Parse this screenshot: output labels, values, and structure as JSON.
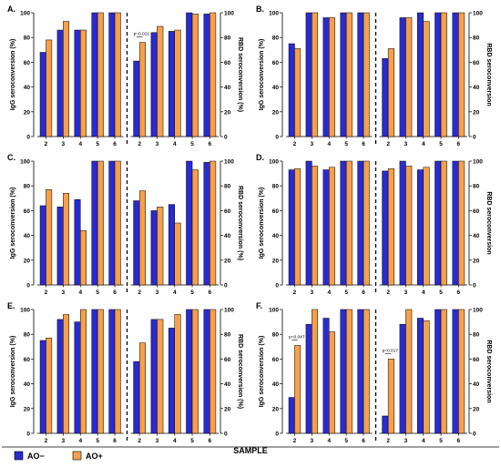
{
  "figure": {
    "x_axis_label": "SAMPLE",
    "legend": [
      {
        "label": "AO−",
        "color": "#2a2ad1"
      },
      {
        "label": "AO+",
        "color": "#f5a04a"
      }
    ],
    "colors": {
      "ao_minus": "#2a2ad1",
      "ao_plus": "#f5a04a",
      "axis": "#000000"
    }
  },
  "chart_data": [
    {
      "type": "bar",
      "panel_label": "A.",
      "ylabel_left": "IgG seroconversion (%)",
      "ylabel_right": "RBD seroconversion (%)",
      "ylim": [
        0,
        100
      ],
      "yticks": [
        0,
        20,
        40,
        60,
        80,
        100
      ],
      "groups": [
        {
          "categories": [
            "2",
            "3",
            "4",
            "5",
            "6"
          ],
          "series": [
            {
              "name": "AO−",
              "values": [
                68,
                86,
                86,
                100,
                100
              ]
            },
            {
              "name": "AO+",
              "values": [
                78,
                93,
                86,
                100,
                100
              ]
            }
          ]
        },
        {
          "categories": [
            "2",
            "3",
            "4",
            "5",
            "6"
          ],
          "series": [
            {
              "name": "AO−",
              "values": [
                61,
                84,
                85,
                100,
                99
              ]
            },
            {
              "name": "AO+",
              "values": [
                76,
                89,
                86,
                99,
                100
              ]
            }
          ]
        }
      ],
      "annotations": [
        {
          "text": "p=0.021",
          "group": 1,
          "category": 0
        }
      ]
    },
    {
      "type": "bar",
      "panel_label": "B.",
      "ylabel_left": "IgG seroconversion (%)",
      "ylabel_right": "RBD seroconversion",
      "ylim": [
        0,
        100
      ],
      "yticks": [
        0,
        20,
        40,
        60,
        80,
        100
      ],
      "groups": [
        {
          "categories": [
            "2",
            "3",
            "4",
            "5",
            "6"
          ],
          "series": [
            {
              "name": "AO−",
              "values": [
                75,
                100,
                96,
                100,
                100
              ]
            },
            {
              "name": "AO+",
              "values": [
                71,
                100,
                96,
                100,
                100
              ]
            }
          ]
        },
        {
          "categories": [
            "2",
            "3",
            "4",
            "5",
            "6"
          ],
          "series": [
            {
              "name": "AO−",
              "values": [
                63,
                96,
                100,
                100,
                100
              ]
            },
            {
              "name": "AO+",
              "values": [
                71,
                96,
                93,
                100,
                100
              ]
            }
          ]
        }
      ],
      "annotations": []
    },
    {
      "type": "bar",
      "panel_label": "C.",
      "ylabel_left": "IgG seroconversion (%)",
      "ylabel_right": "RBD seroconversion (%)",
      "ylim": [
        0,
        100
      ],
      "yticks": [
        0,
        20,
        40,
        60,
        80,
        100
      ],
      "groups": [
        {
          "categories": [
            "2",
            "3",
            "4",
            "5",
            "6"
          ],
          "series": [
            {
              "name": "AO−",
              "values": [
                64,
                63,
                69,
                100,
                100
              ]
            },
            {
              "name": "AO+",
              "values": [
                77,
                74,
                44,
                100,
                100
              ]
            }
          ]
        },
        {
          "categories": [
            "2",
            "3",
            "4",
            "5",
            "6"
          ],
          "series": [
            {
              "name": "AO−",
              "values": [
                68,
                60,
                65,
                100,
                99
              ]
            },
            {
              "name": "AO+",
              "values": [
                76,
                63,
                50,
                93,
                100
              ]
            }
          ]
        }
      ],
      "annotations": []
    },
    {
      "type": "bar",
      "panel_label": "D.",
      "ylabel_left": "IgG seroconversion (%)",
      "ylabel_right": "RBD seroconversion",
      "ylim": [
        0,
        100
      ],
      "yticks": [
        0,
        20,
        40,
        60,
        80,
        100
      ],
      "groups": [
        {
          "categories": [
            "2",
            "3",
            "4",
            "5",
            "6"
          ],
          "series": [
            {
              "name": "AO−",
              "values": [
                93,
                100,
                93,
                100,
                100
              ]
            },
            {
              "name": "AO+",
              "values": [
                94,
                96,
                95,
                100,
                100
              ]
            }
          ]
        },
        {
          "categories": [
            "2",
            "3",
            "4",
            "5",
            "6"
          ],
          "series": [
            {
              "name": "AO−",
              "values": [
                92,
                100,
                93,
                100,
                100
              ]
            },
            {
              "name": "AO+",
              "values": [
                94,
                96,
                95,
                100,
                100
              ]
            }
          ]
        }
      ],
      "annotations": []
    },
    {
      "type": "bar",
      "panel_label": "E.",
      "ylabel_left": "IgG seroconversion (%)",
      "ylabel_right": "RBD seroconversion (%)",
      "ylim": [
        0,
        100
      ],
      "yticks": [
        0,
        20,
        40,
        60,
        80,
        100
      ],
      "groups": [
        {
          "categories": [
            "2",
            "3",
            "4",
            "5",
            "6"
          ],
          "series": [
            {
              "name": "AO−",
              "values": [
                75,
                92,
                90,
                100,
                100
              ]
            },
            {
              "name": "AO+",
              "values": [
                77,
                96,
                100,
                100,
                100
              ]
            }
          ]
        },
        {
          "categories": [
            "2",
            "3",
            "4",
            "5",
            "6"
          ],
          "series": [
            {
              "name": "AO−",
              "values": [
                58,
                92,
                85,
                100,
                100
              ]
            },
            {
              "name": "AO+",
              "values": [
                73,
                92,
                96,
                100,
                100
              ]
            }
          ]
        }
      ],
      "annotations": []
    },
    {
      "type": "bar",
      "panel_label": "F.",
      "ylabel_left": "IgG seroconversion (%)",
      "ylabel_right": "RBD seroconversion",
      "ylim": [
        0,
        100
      ],
      "yticks": [
        0,
        20,
        40,
        60,
        80,
        100
      ],
      "groups": [
        {
          "categories": [
            "2",
            "3",
            "4",
            "5",
            "6"
          ],
          "series": [
            {
              "name": "AO−",
              "values": [
                29,
                88,
                93,
                100,
                100
              ]
            },
            {
              "name": "AO+",
              "values": [
                71,
                100,
                82,
                100,
                100
              ]
            }
          ]
        },
        {
          "categories": [
            "2",
            "3",
            "4",
            "5",
            "6"
          ],
          "series": [
            {
              "name": "AO−",
              "values": [
                14,
                88,
                93,
                100,
                100
              ]
            },
            {
              "name": "AO+",
              "values": [
                60,
                100,
                91,
                100,
                100
              ]
            }
          ]
        }
      ],
      "annotations": [
        {
          "text": "p=0.047",
          "group": 0,
          "category": 0
        },
        {
          "text": "p=0.017",
          "group": 1,
          "category": 0
        }
      ]
    }
  ]
}
